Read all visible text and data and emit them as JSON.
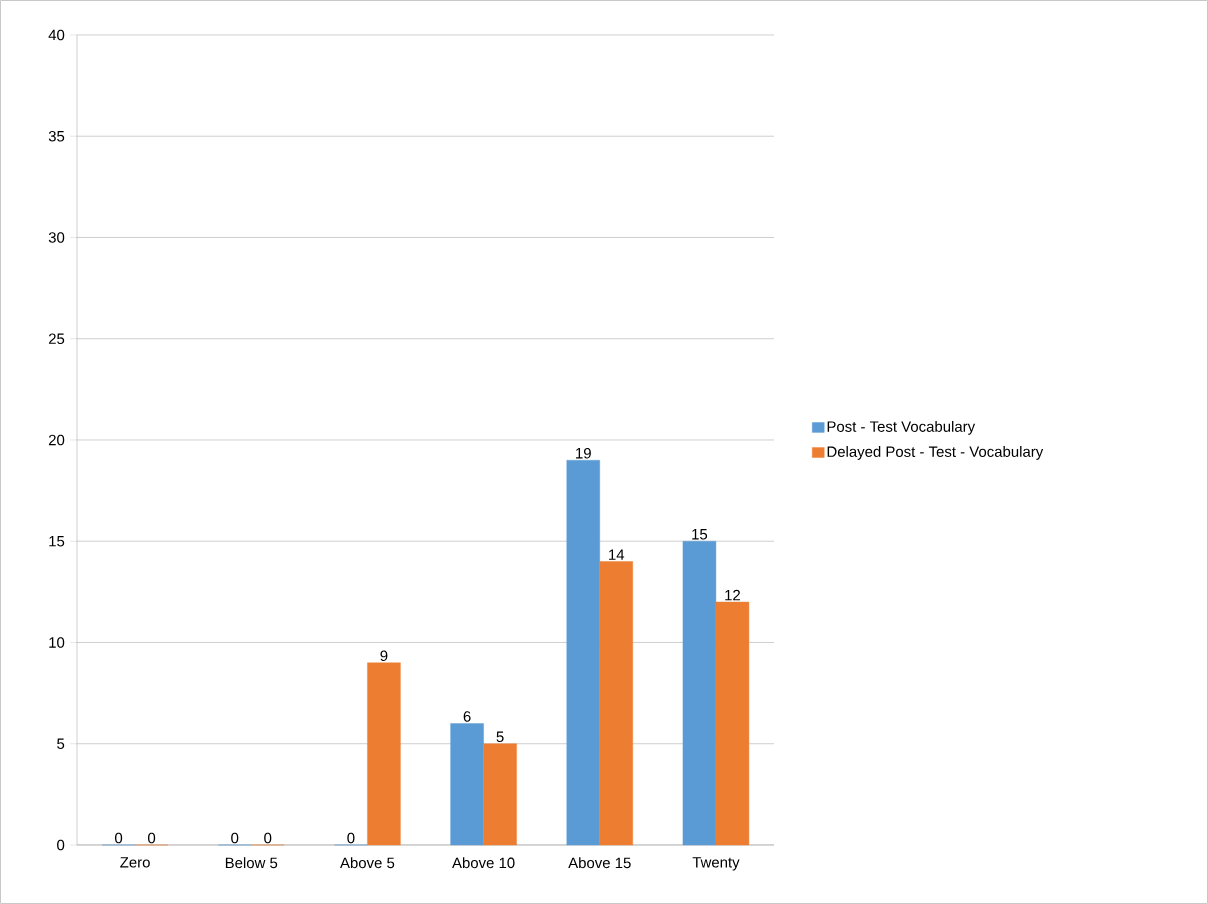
{
  "chart_data": {
    "type": "bar",
    "categories": [
      "Zero",
      "Below 5",
      "Above 5",
      "Above 10",
      "Above 15",
      "Twenty"
    ],
    "series": [
      {
        "name": "Post - Test Vocabulary",
        "color": "#5b9bd5",
        "values": [
          0,
          0,
          0,
          6,
          19,
          15
        ]
      },
      {
        "name": "Delayed Post - Test - Vocabulary",
        "color": "#ed7d31",
        "values": [
          0,
          0,
          9,
          5,
          14,
          12
        ]
      }
    ],
    "ylim": [
      0,
      40
    ],
    "yticks": [
      0,
      5,
      10,
      15,
      20,
      25,
      30,
      35,
      40
    ],
    "grid": "y",
    "legend": "right",
    "data_labels": true
  }
}
